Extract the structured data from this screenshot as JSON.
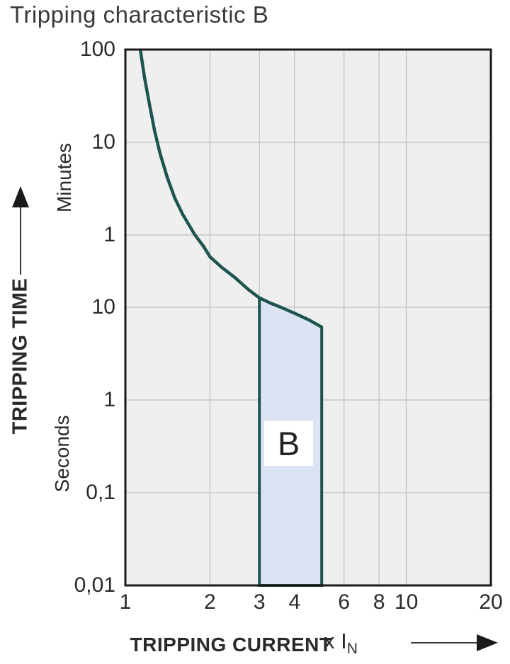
{
  "title": "Tripping characteristic B",
  "region_label": "B",
  "colors": {
    "curve": "#1e5450",
    "band_fill": "#dce3f3",
    "plot_bg": "#efefef",
    "grid": "#c7cac9",
    "border": "#1a1a1a",
    "text": "#2a2a2a"
  },
  "y_axis": {
    "label": "TRIPPING TIME",
    "unit_top": "Minutes",
    "unit_bottom": "Seconds",
    "ticks": [
      {
        "label": "100",
        "seconds": 6000
      },
      {
        "label": "10",
        "seconds": 600
      },
      {
        "label": "1",
        "seconds": 60
      },
      {
        "label": "10",
        "seconds": 10
      },
      {
        "label": "1",
        "seconds": 1
      },
      {
        "label": "0,1",
        "seconds": 0.1
      },
      {
        "label": "0,01",
        "seconds": 0.01
      }
    ]
  },
  "x_axis": {
    "label": "TRIPPING CURRENT",
    "multiplier": "x I",
    "multiplier_sub": "N",
    "ticks": [
      {
        "label": "1",
        "value": 1
      },
      {
        "label": "2",
        "value": 2
      },
      {
        "label": "3",
        "value": 3
      },
      {
        "label": "4",
        "value": 4
      },
      {
        "label": "6",
        "value": 6
      },
      {
        "label": "8",
        "value": 8
      },
      {
        "label": "10",
        "value": 10
      },
      {
        "label": "20",
        "value": 20
      }
    ]
  },
  "chart_data": {
    "type": "line",
    "title": "Tripping characteristic B",
    "xlabel": "TRIPPING CURRENT (x IN)",
    "ylabel": "TRIPPING TIME",
    "x_scale": "log",
    "y_scale": "log",
    "xlim": [
      1,
      20
    ],
    "ylim_seconds": [
      0.01,
      6000
    ],
    "x_tick_labels": [
      "1",
      "2",
      "3",
      "4",
      "6",
      "8",
      "10",
      "20"
    ],
    "y_tick_labels_minutes": [
      "100",
      "10",
      "1"
    ],
    "y_tick_labels_seconds": [
      "10",
      "1",
      "0,1",
      "0,01"
    ],
    "grid": true,
    "series": [
      {
        "name": "thermal tripping curve",
        "points_x_multiple_vs_seconds": [
          [
            1.13,
            6000
          ],
          [
            1.17,
            3000
          ],
          [
            1.22,
            1500
          ],
          [
            1.27,
            800
          ],
          [
            1.33,
            450
          ],
          [
            1.41,
            250
          ],
          [
            1.5,
            150
          ],
          [
            1.6,
            100
          ],
          [
            1.77,
            60
          ],
          [
            1.9,
            45
          ],
          [
            2.0,
            35
          ],
          [
            2.2,
            27
          ],
          [
            2.45,
            21
          ],
          [
            2.74,
            15.5
          ],
          [
            3.0,
            12.6
          ],
          [
            3.3,
            11
          ],
          [
            3.6,
            9.9
          ],
          [
            4.0,
            8.6
          ],
          [
            4.5,
            7.3
          ],
          [
            5.0,
            6.1
          ]
        ]
      }
    ],
    "band": {
      "label": "B",
      "x_from": 3,
      "x_to": 5,
      "bottom_seconds": 0.01,
      "note": "magnetic instantaneous trip range 3-5 x IN, shaded from 0.01 s up to the thermal curve"
    }
  }
}
